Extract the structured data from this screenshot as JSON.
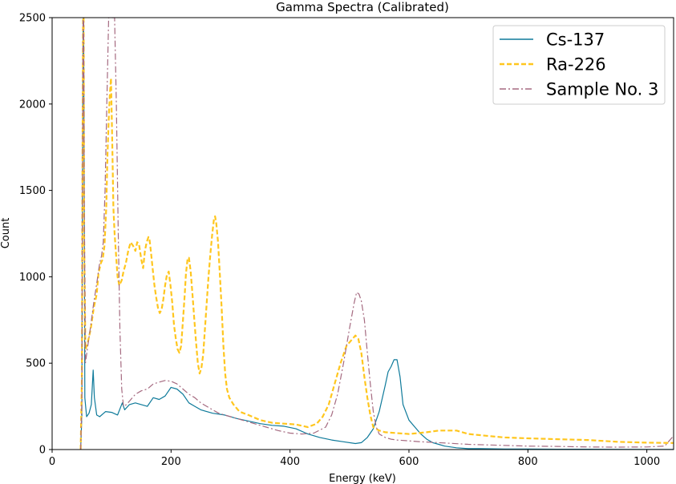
{
  "chart_data": {
    "type": "line",
    "title": "Gamma Spectra (Calibrated)",
    "xlabel": "Energy (keV)",
    "ylabel": "Count",
    "xlim": [
      0,
      1045
    ],
    "ylim": [
      0,
      2500
    ],
    "x_ticks": [
      0,
      200,
      400,
      600,
      800,
      1000
    ],
    "y_ticks": [
      0,
      500,
      1000,
      1500,
      2000,
      2500
    ],
    "grid": false,
    "legend_position": "top-right",
    "series": [
      {
        "name": "Cs-137",
        "color": "#0e7a9a",
        "style": "solid",
        "points": [
          [
            48,
            0
          ],
          [
            50,
            200
          ],
          [
            51,
            1500
          ],
          [
            52,
            2500
          ],
          [
            53,
            2500
          ],
          [
            54,
            1500
          ],
          [
            55,
            300
          ],
          [
            58,
            190
          ],
          [
            62,
            210
          ],
          [
            66,
            260
          ],
          [
            69,
            460
          ],
          [
            71,
            300
          ],
          [
            75,
            200
          ],
          [
            80,
            190
          ],
          [
            90,
            220
          ],
          [
            100,
            215
          ],
          [
            110,
            200
          ],
          [
            118,
            270
          ],
          [
            122,
            230
          ],
          [
            130,
            260
          ],
          [
            140,
            270
          ],
          [
            150,
            260
          ],
          [
            160,
            250
          ],
          [
            170,
            300
          ],
          [
            180,
            290
          ],
          [
            190,
            310
          ],
          [
            200,
            360
          ],
          [
            210,
            350
          ],
          [
            220,
            320
          ],
          [
            230,
            270
          ],
          [
            240,
            250
          ],
          [
            250,
            230
          ],
          [
            270,
            210
          ],
          [
            290,
            200
          ],
          [
            310,
            180
          ],
          [
            330,
            165
          ],
          [
            350,
            150
          ],
          [
            370,
            140
          ],
          [
            390,
            135
          ],
          [
            410,
            120
          ],
          [
            430,
            90
          ],
          [
            450,
            70
          ],
          [
            470,
            55
          ],
          [
            490,
            45
          ],
          [
            510,
            35
          ],
          [
            520,
            40
          ],
          [
            530,
            70
          ],
          [
            540,
            120
          ],
          [
            550,
            220
          ],
          [
            560,
            370
          ],
          [
            565,
            450
          ],
          [
            570,
            480
          ],
          [
            575,
            520
          ],
          [
            580,
            520
          ],
          [
            585,
            420
          ],
          [
            590,
            260
          ],
          [
            600,
            170
          ],
          [
            610,
            130
          ],
          [
            620,
            90
          ],
          [
            630,
            60
          ],
          [
            640,
            40
          ],
          [
            650,
            30
          ],
          [
            660,
            20
          ],
          [
            680,
            10
          ],
          [
            700,
            5
          ],
          [
            720,
            5
          ],
          [
            760,
            3
          ],
          [
            800,
            3
          ],
          [
            850,
            2
          ],
          [
            900,
            2
          ],
          [
            1000,
            1
          ],
          [
            1045,
            1
          ]
        ]
      },
      {
        "name": "Ra-226",
        "color": "#ffc61e",
        "style": "dashed",
        "points": [
          [
            48,
            0
          ],
          [
            50,
            400
          ],
          [
            51,
            1600
          ],
          [
            52,
            2500
          ],
          [
            53,
            2500
          ],
          [
            54,
            1200
          ],
          [
            56,
            580
          ],
          [
            60,
            620
          ],
          [
            65,
            700
          ],
          [
            70,
            820
          ],
          [
            75,
            900
          ],
          [
            78,
            1020
          ],
          [
            82,
            1080
          ],
          [
            85,
            1100
          ],
          [
            88,
            1180
          ],
          [
            91,
            1400
          ],
          [
            93,
            1700
          ],
          [
            95,
            1900
          ],
          [
            97,
            2050
          ],
          [
            99,
            2150
          ],
          [
            101,
            1800
          ],
          [
            103,
            1400
          ],
          [
            105,
            1250
          ],
          [
            107,
            1150
          ],
          [
            110,
            1000
          ],
          [
            113,
            950
          ],
          [
            117,
            980
          ],
          [
            120,
            1030
          ],
          [
            124,
            1080
          ],
          [
            128,
            1150
          ],
          [
            132,
            1200
          ],
          [
            136,
            1180
          ],
          [
            140,
            1150
          ],
          [
            143,
            1200
          ],
          [
            146,
            1190
          ],
          [
            150,
            1100
          ],
          [
            153,
            1050
          ],
          [
            156,
            1150
          ],
          [
            159,
            1200
          ],
          [
            162,
            1230
          ],
          [
            164,
            1210
          ],
          [
            166,
            1150
          ],
          [
            169,
            1050
          ],
          [
            172,
            950
          ],
          [
            175,
            880
          ],
          [
            178,
            820
          ],
          [
            181,
            790
          ],
          [
            184,
            810
          ],
          [
            187,
            870
          ],
          [
            190,
            950
          ],
          [
            193,
            1010
          ],
          [
            196,
            1030
          ],
          [
            199,
            950
          ],
          [
            202,
            850
          ],
          [
            205,
            720
          ],
          [
            208,
            640
          ],
          [
            211,
            580
          ],
          [
            214,
            560
          ],
          [
            217,
            600
          ],
          [
            220,
            750
          ],
          [
            223,
            900
          ],
          [
            225,
            1020
          ],
          [
            228,
            1110
          ],
          [
            230,
            1110
          ],
          [
            233,
            1030
          ],
          [
            236,
            900
          ],
          [
            239,
            760
          ],
          [
            242,
            620
          ],
          [
            245,
            500
          ],
          [
            248,
            440
          ],
          [
            251,
            470
          ],
          [
            254,
            550
          ],
          [
            257,
            700
          ],
          [
            260,
            850
          ],
          [
            263,
            1000
          ],
          [
            266,
            1130
          ],
          [
            269,
            1240
          ],
          [
            272,
            1330
          ],
          [
            274,
            1350
          ],
          [
            276,
            1310
          ],
          [
            279,
            1200
          ],
          [
            282,
            1020
          ],
          [
            285,
            820
          ],
          [
            288,
            600
          ],
          [
            291,
            440
          ],
          [
            294,
            350
          ],
          [
            298,
            300
          ],
          [
            305,
            260
          ],
          [
            315,
            220
          ],
          [
            330,
            200
          ],
          [
            350,
            170
          ],
          [
            370,
            155
          ],
          [
            390,
            150
          ],
          [
            410,
            145
          ],
          [
            430,
            130
          ],
          [
            445,
            150
          ],
          [
            455,
            190
          ],
          [
            465,
            260
          ],
          [
            475,
            380
          ],
          [
            485,
            500
          ],
          [
            495,
            600
          ],
          [
            505,
            640
          ],
          [
            510,
            660
          ],
          [
            515,
            640
          ],
          [
            520,
            560
          ],
          [
            525,
            420
          ],
          [
            530,
            300
          ],
          [
            535,
            200
          ],
          [
            540,
            130
          ],
          [
            550,
            110
          ],
          [
            560,
            100
          ],
          [
            580,
            95
          ],
          [
            600,
            90
          ],
          [
            630,
            100
          ],
          [
            650,
            110
          ],
          [
            680,
            110
          ],
          [
            700,
            90
          ],
          [
            730,
            80
          ],
          [
            760,
            70
          ],
          [
            800,
            65
          ],
          [
            850,
            60
          ],
          [
            900,
            55
          ],
          [
            950,
            45
          ],
          [
            1000,
            40
          ],
          [
            1045,
            38
          ]
        ]
      },
      {
        "name": "Sample No. 3",
        "color": "#a56a80",
        "style": "dashdot",
        "points": [
          [
            48,
            0
          ],
          [
            50,
            300
          ],
          [
            51,
            1500
          ],
          [
            52,
            2500
          ],
          [
            53,
            2500
          ],
          [
            54,
            1500
          ],
          [
            56,
            500
          ],
          [
            60,
            600
          ],
          [
            65,
            720
          ],
          [
            70,
            850
          ],
          [
            75,
            960
          ],
          [
            80,
            1080
          ],
          [
            83,
            1120
          ],
          [
            86,
            1200
          ],
          [
            89,
            1500
          ],
          [
            92,
            2000
          ],
          [
            95,
            2500
          ],
          [
            105,
            2500
          ],
          [
            108,
            2000
          ],
          [
            111,
            1300
          ],
          [
            114,
            700
          ],
          [
            117,
            350
          ],
          [
            120,
            250
          ],
          [
            125,
            260
          ],
          [
            130,
            280
          ],
          [
            140,
            320
          ],
          [
            150,
            340
          ],
          [
            160,
            350
          ],
          [
            170,
            380
          ],
          [
            180,
            390
          ],
          [
            190,
            400
          ],
          [
            200,
            395
          ],
          [
            210,
            380
          ],
          [
            220,
            350
          ],
          [
            230,
            320
          ],
          [
            240,
            300
          ],
          [
            250,
            270
          ],
          [
            260,
            250
          ],
          [
            270,
            230
          ],
          [
            280,
            210
          ],
          [
            290,
            200
          ],
          [
            300,
            190
          ],
          [
            320,
            170
          ],
          [
            340,
            150
          ],
          [
            360,
            130
          ],
          [
            380,
            110
          ],
          [
            400,
            95
          ],
          [
            420,
            90
          ],
          [
            440,
            95
          ],
          [
            460,
            130
          ],
          [
            470,
            200
          ],
          [
            480,
            320
          ],
          [
            490,
            500
          ],
          [
            500,
            700
          ],
          [
            508,
            850
          ],
          [
            512,
            910
          ],
          [
            516,
            900
          ],
          [
            520,
            860
          ],
          [
            525,
            750
          ],
          [
            530,
            560
          ],
          [
            535,
            380
          ],
          [
            540,
            220
          ],
          [
            545,
            130
          ],
          [
            550,
            90
          ],
          [
            560,
            70
          ],
          [
            570,
            60
          ],
          [
            580,
            55
          ],
          [
            600,
            50
          ],
          [
            620,
            45
          ],
          [
            650,
            40
          ],
          [
            700,
            30
          ],
          [
            750,
            25
          ],
          [
            800,
            20
          ],
          [
            850,
            18
          ],
          [
            900,
            15
          ],
          [
            950,
            14
          ],
          [
            1000,
            15
          ],
          [
            1030,
            20
          ],
          [
            1045,
            80
          ]
        ]
      }
    ]
  }
}
